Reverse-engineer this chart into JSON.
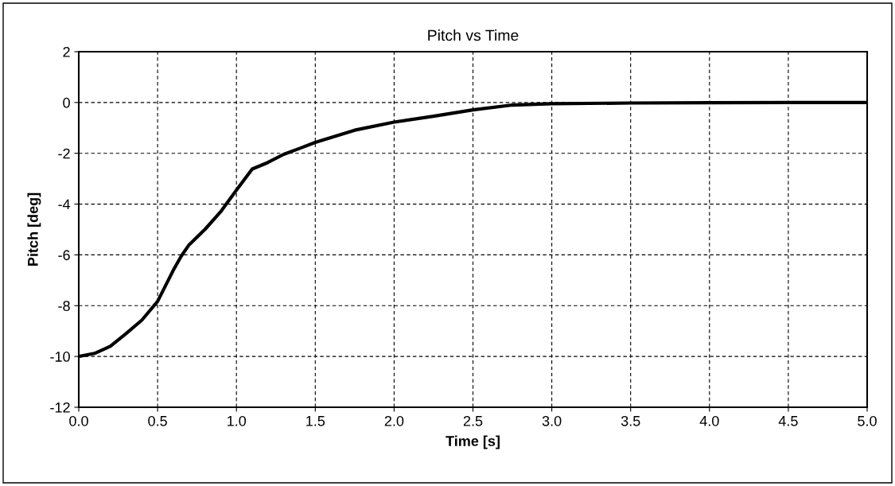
{
  "chart_data": {
    "type": "line",
    "title": "Pitch vs Time",
    "xlabel": "Time [s]",
    "ylabel": "Pitch [deg]",
    "x": [
      0,
      0.1,
      0.2,
      0.3,
      0.4,
      0.5,
      0.6,
      0.65,
      0.7,
      0.8,
      0.9,
      1.0,
      1.1,
      1.2,
      1.3,
      1.4,
      1.5,
      1.75,
      2.0,
      2.25,
      2.5,
      2.75,
      3.0,
      3.5,
      4.0,
      4.5,
      5.0
    ],
    "series": [
      {
        "color": "#000000",
        "values": [
          -10,
          -9.88,
          -9.6,
          -9.1,
          -8.57,
          -7.83,
          -6.6,
          -6.05,
          -5.6,
          -5.0,
          -4.3,
          -3.45,
          -2.62,
          -2.36,
          -2.04,
          -1.81,
          -1.57,
          -1.09,
          -0.77,
          -0.54,
          -0.29,
          -0.1,
          -0.05,
          -0.02,
          -0.01,
          0,
          0
        ]
      }
    ],
    "xlim": [
      0,
      5
    ],
    "xticks": [
      {
        "value": 0,
        "label": "0.0"
      },
      {
        "value": 0.5,
        "label": "0.5"
      },
      {
        "value": 1,
        "label": "1.0"
      },
      {
        "value": 1.5,
        "label": "1.5"
      },
      {
        "value": 2,
        "label": "2.0"
      },
      {
        "value": 2.5,
        "label": "2.5"
      },
      {
        "value": 3,
        "label": "3.0"
      },
      {
        "value": 3.5,
        "label": "3.5"
      },
      {
        "value": 4,
        "label": "4.0"
      },
      {
        "value": 4.5,
        "label": "4.5"
      },
      {
        "value": 5,
        "label": "5.0"
      }
    ],
    "ylim": [
      -12,
      2
    ],
    "yticks": [
      -12,
      -10,
      -8,
      -6,
      -4,
      -2,
      0,
      2
    ],
    "grid": true,
    "line_style": "solid",
    "marker": "none"
  }
}
